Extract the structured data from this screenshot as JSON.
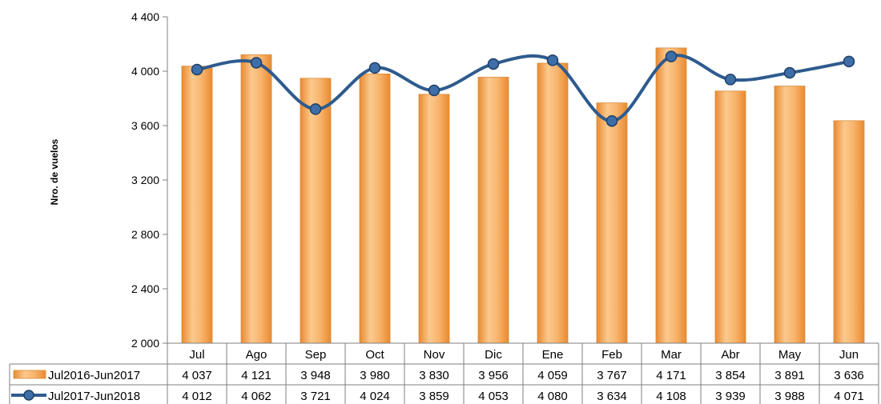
{
  "chart_data": {
    "type": "bar",
    "ylabel": "Nro. de vuelos",
    "ylim": [
      2000,
      4400
    ],
    "yticks": [
      2000,
      2400,
      2800,
      3200,
      3600,
      4000,
      4400
    ],
    "ytick_labels": [
      "2 000",
      "2 400",
      "2 800",
      "3 200",
      "3 600",
      "4 000",
      "4 400"
    ],
    "categories": [
      "Jul",
      "Ago",
      "Sep",
      "Oct",
      "Nov",
      "Dic",
      "Ene",
      "Feb",
      "Mar",
      "Abr",
      "May",
      "Jun"
    ],
    "grid": false,
    "legend": "data-table",
    "series": [
      {
        "name": "Jul2016-Jun2017",
        "type": "bar",
        "color": "#F5A255",
        "values": [
          4037,
          4121,
          3948,
          3980,
          3830,
          3956,
          4059,
          3767,
          4171,
          3854,
          3891,
          3636
        ],
        "labels": [
          "4 037",
          "4 121",
          "3 948",
          "3 980",
          "3 830",
          "3 956",
          "4 059",
          "3 767",
          "4 171",
          "3 854",
          "3 891",
          "3 636"
        ]
      },
      {
        "name": "Jul2017-Jun2018",
        "type": "line",
        "color": "#2E5B8E",
        "values": [
          4012,
          4062,
          3721,
          4024,
          3859,
          4053,
          4080,
          3634,
          4108,
          3939,
          3988,
          4071
        ],
        "labels": [
          "4 012",
          "4 062",
          "3 721",
          "4 024",
          "3 859",
          "4 053",
          "4 080",
          "3 634",
          "4 108",
          "3 939",
          "3 988",
          "4 071"
        ]
      }
    ]
  }
}
